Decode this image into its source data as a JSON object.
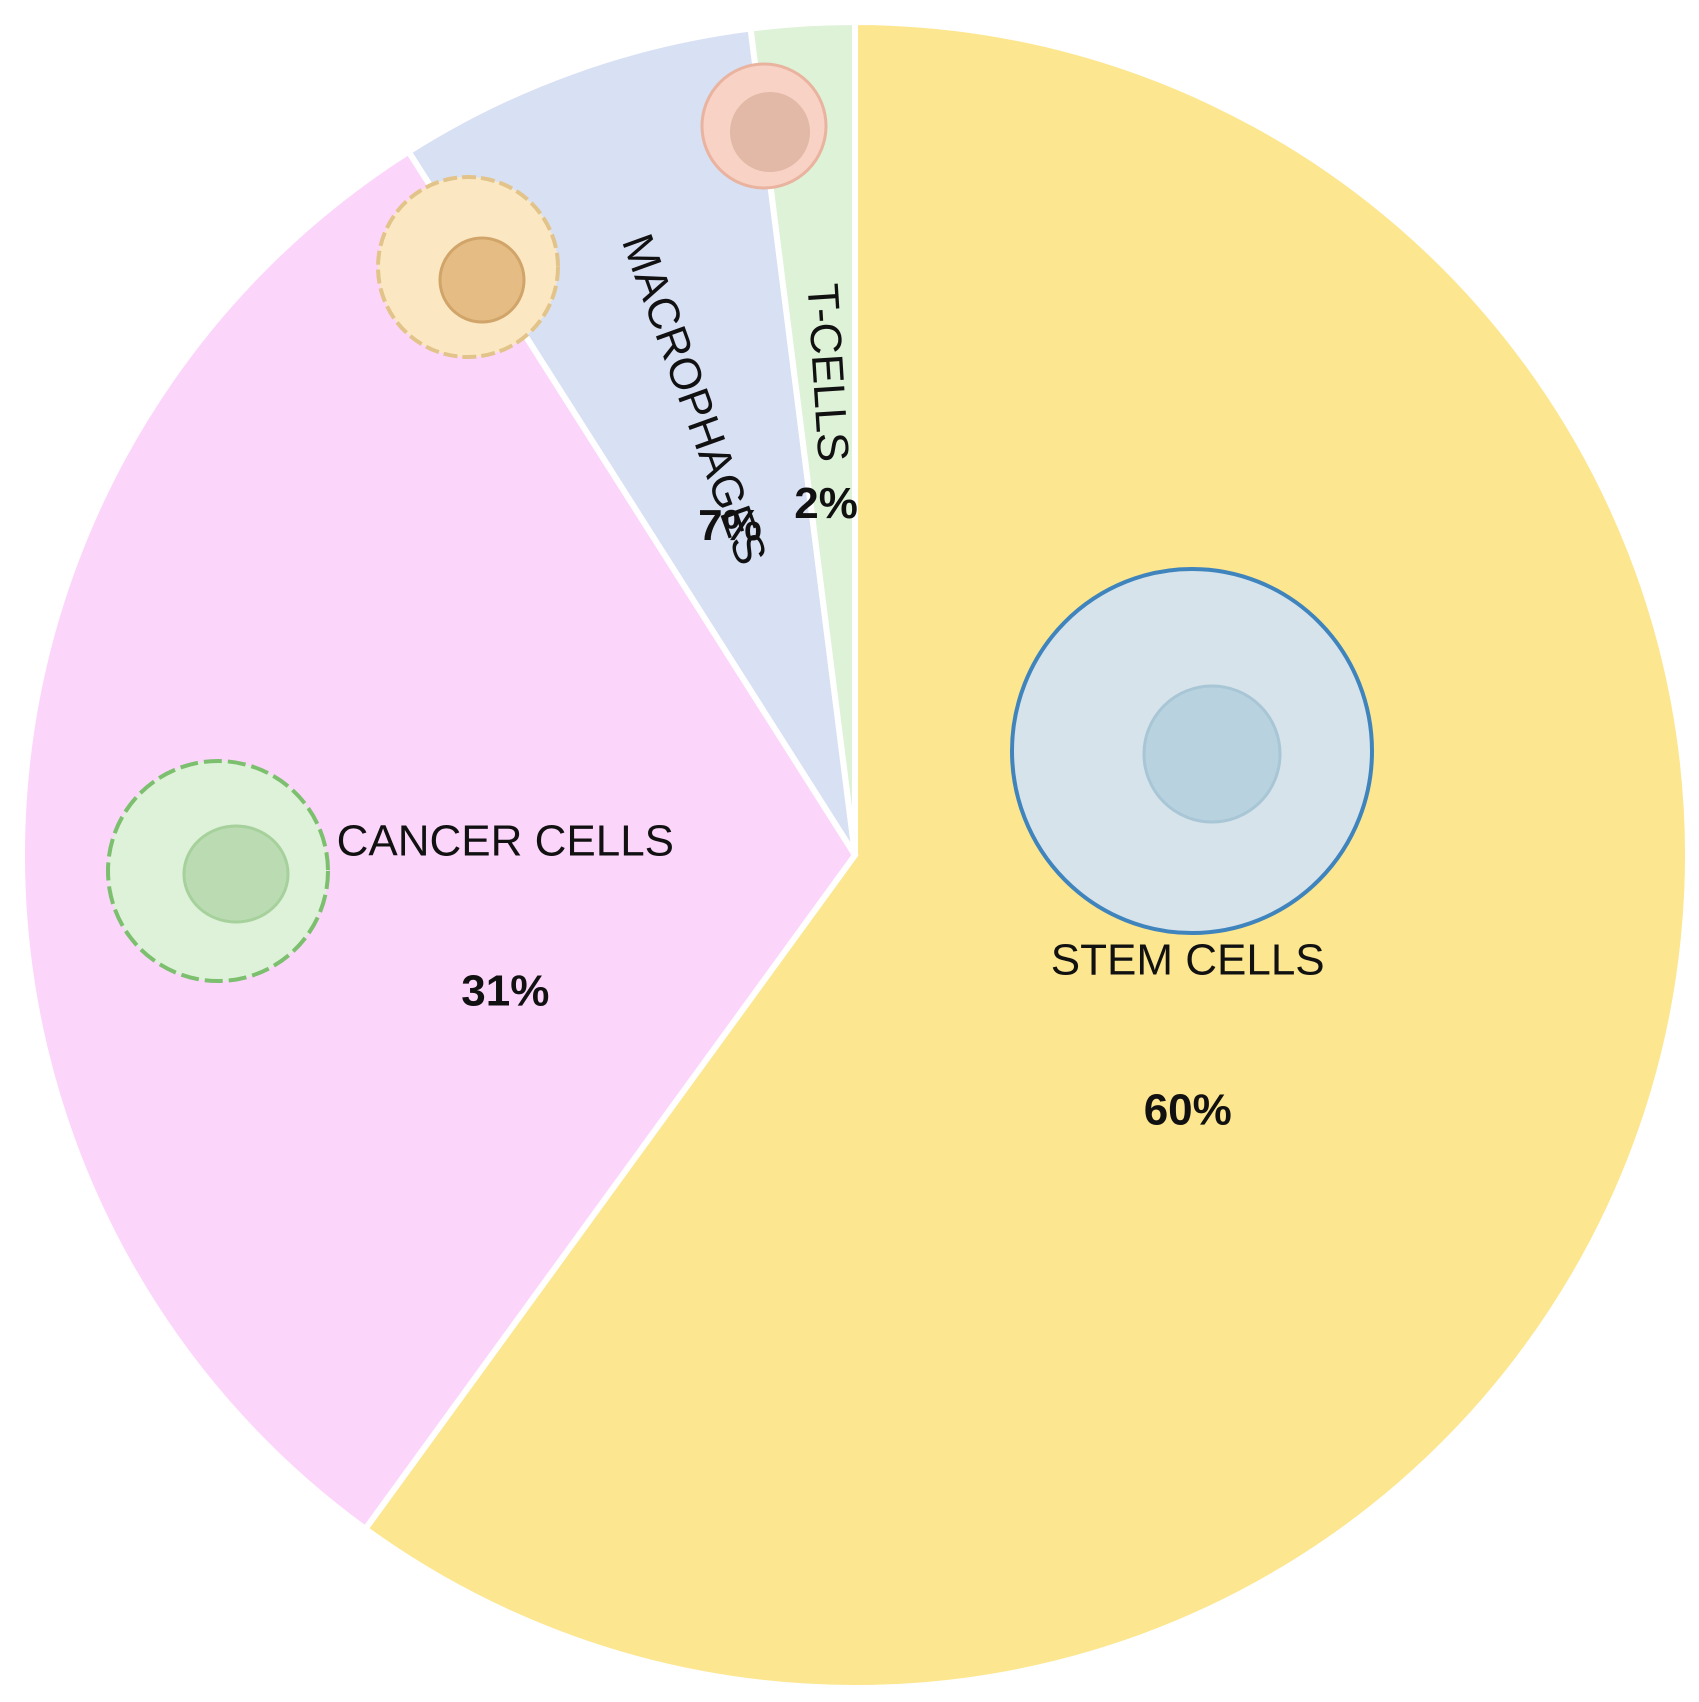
{
  "chart_data": {
    "type": "pie",
    "categories": [
      "STEM CELLS",
      "CANCER CELLS",
      "MACROPHAGES",
      "T-CELLS"
    ],
    "values": [
      60,
      31,
      7,
      2
    ],
    "value_labels": [
      "60%",
      "31%",
      "7%",
      "2%"
    ],
    "colors": [
      "#fce68f",
      "#fcd5fb",
      "#d8e0f3",
      "#def2d8"
    ]
  }
}
